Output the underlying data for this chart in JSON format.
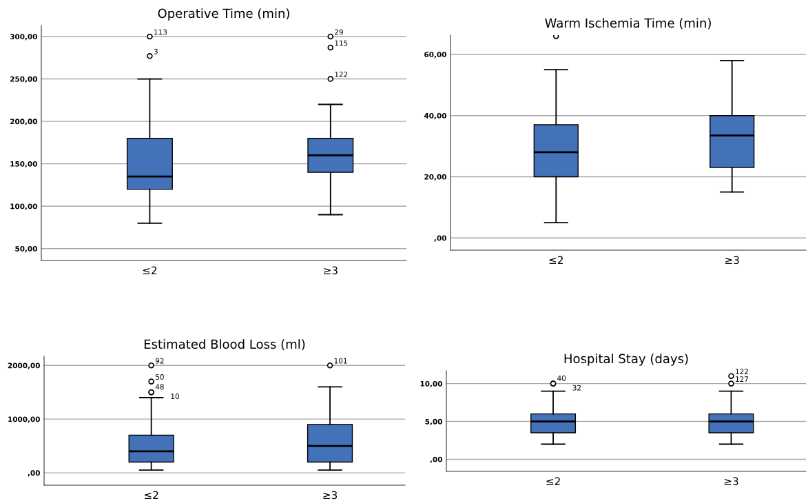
{
  "chart_data": [
    {
      "type": "box",
      "title": "Operative Time (min)",
      "categories": [
        "≤2",
        "≥3"
      ],
      "color": "#4472b8",
      "grid": "y",
      "boxes": [
        {
          "low": 80,
          "q1": 120,
          "median": 135,
          "q3": 180,
          "high": 250,
          "outliers": [
            277,
            300
          ]
        },
        {
          "low": 90,
          "q1": 140,
          "median": 160,
          "q3": 180,
          "high": 220,
          "outliers": [
            250,
            287,
            300
          ]
        }
      ],
      "ylim": [
        36,
        313
      ],
      "yticks": [
        {
          "value": 50,
          "label": "50,00"
        },
        {
          "value": 100,
          "label": "100,00"
        },
        {
          "value": 150,
          "label": "150,00"
        },
        {
          "value": 200,
          "label": "200,00"
        },
        {
          "value": 250,
          "label": "250,00"
        },
        {
          "value": 300,
          "label": "300,00"
        }
      ],
      "annotations": [
        "3",
        "113",
        "122",
        "115",
        "29"
      ]
    },
    {
      "type": "box",
      "title": "Warm Ischemia Time (min)",
      "categories": [
        "≤2",
        "≥3"
      ],
      "color": "#4472b8",
      "grid": "y",
      "boxes": [
        {
          "low": 5,
          "q1": 20,
          "median": 28,
          "q3": 37,
          "high": 55,
          "outliers": [
            66
          ]
        },
        {
          "low": 15,
          "q1": 23,
          "median": 33.5,
          "q3": 40,
          "high": 58
        }
      ],
      "ylim": [
        -4,
        66.3
      ],
      "yticks": [
        {
          "value": 0,
          "label": ",00"
        },
        {
          "value": 20,
          "label": "20,00"
        },
        {
          "value": 40,
          "label": "40,00"
        },
        {
          "value": 60,
          "label": "60,00"
        }
      ]
    },
    {
      "type": "box",
      "title": "Estimated Blood Loss (ml)",
      "categories": [
        "≤2",
        "≥3"
      ],
      "color": "#4472b8",
      "grid": "y",
      "boxes": [
        {
          "low": 50,
          "q1": 200,
          "median": 400,
          "q3": 700,
          "high": 1400,
          "outliers": [
            1500,
            1500,
            1700,
            2000
          ]
        },
        {
          "low": 50,
          "q1": 200,
          "median": 500,
          "q3": 900,
          "high": 1600,
          "outliers": [
            2000
          ]
        }
      ],
      "ylim": [
        -230,
        2170
      ],
      "yticks": [
        {
          "value": 0,
          "label": ",00"
        },
        {
          "value": 1000,
          "label": "1000,00"
        },
        {
          "value": 2000,
          "label": "2000,00"
        }
      ],
      "annotations": [
        "10",
        "48",
        "50",
        "92",
        "101"
      ]
    },
    {
      "type": "box",
      "title": "Hospital Stay (days)",
      "categories": [
        "≤2",
        "≥3"
      ],
      "color": "#4472b8",
      "grid": "y",
      "boxes": [
        {
          "low": 2,
          "q1": 3.5,
          "median": 5,
          "q3": 6,
          "high": 9,
          "outliers": [
            10,
            10
          ]
        },
        {
          "low": 2,
          "q1": 3.5,
          "median": 5,
          "q3": 6,
          "high": 9,
          "outliers": [
            10,
            11
          ]
        }
      ],
      "ylim": [
        -1.6,
        11.7
      ],
      "yticks": [
        {
          "value": 0,
          "label": ",00"
        },
        {
          "value": 5,
          "label": "5,00"
        },
        {
          "value": 10,
          "label": "10,00"
        }
      ],
      "annotations": [
        "32",
        "40",
        "127",
        "122"
      ]
    }
  ]
}
